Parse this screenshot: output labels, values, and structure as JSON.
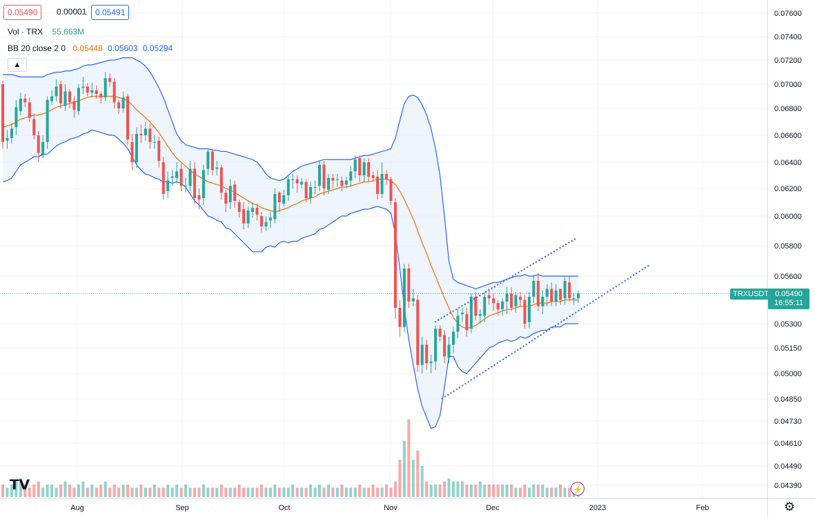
{
  "header": {
    "bid": "0.05490",
    "spread": "0.00001",
    "ask": "0.05491",
    "volume_label": "Vol · TRX",
    "volume_value": "55.663M",
    "bb_label": "BB 20 close 2 0",
    "bb_basis": "0.05448",
    "bb_upper": "0.05603",
    "bb_lower": "0.05294",
    "collapse_icon": "chevron-up-icon"
  },
  "last_price": {
    "symbol": "TRXUSDT",
    "price": "0.05490",
    "countdown": "16:55:11"
  },
  "colors": {
    "up": "#26a69a",
    "down": "#ef5350",
    "bb_band": "#2962ff",
    "bb_basis": "#ff6d00",
    "band_fill": "#e3eefa",
    "trendline": "#2962ff"
  },
  "icons": {
    "logo": "tradingview-logo-icon",
    "settings": "gear-icon",
    "alert": "lightning-icon"
  },
  "chart_data": {
    "type": "candlestick",
    "title": "TRXUSDT",
    "indicators": [
      "Volume",
      "Bollinger Bands (20, close, 2)"
    ],
    "yticks": [
      "0.07600",
      "0.07400",
      "0.07200",
      "0.07000",
      "0.06800",
      "0.06600",
      "0.06400",
      "0.06200",
      "0.06000",
      "0.05800",
      "0.05600",
      "0.05300",
      "0.05150",
      "0.05000",
      "0.04850",
      "0.04730",
      "0.04610",
      "0.04490",
      "0.04390"
    ],
    "xticks": [
      "Aug",
      "Sep",
      "Oct",
      "Nov",
      "Dec",
      "2023",
      "Feb"
    ],
    "ylim": [
      0.0434,
      0.0768
    ],
    "grid": true,
    "series_open": [
      0.07,
      0.0656,
      0.0658,
      0.0666,
      0.0678,
      0.0688,
      0.0685,
      0.0672,
      0.066,
      0.0645,
      0.0655,
      0.0686,
      0.069,
      0.07,
      0.0682,
      0.0694,
      0.0686,
      0.0678,
      0.0697,
      0.0698,
      0.0693,
      0.0695,
      0.0692,
      0.0689,
      0.0705,
      0.0702,
      0.0685,
      0.068,
      0.069,
      0.0655,
      0.064,
      0.0661,
      0.066,
      0.0665,
      0.0655,
      0.0656,
      0.064,
      0.0618,
      0.0628,
      0.0628,
      0.0635,
      0.0622,
      0.0622,
      0.0635,
      0.0615,
      0.0613,
      0.0635,
      0.0648,
      0.0635,
      0.0636,
      0.0617,
      0.061,
      0.0623,
      0.061,
      0.0605,
      0.0595,
      0.0603,
      0.0606,
      0.06,
      0.0593,
      0.0597,
      0.0598,
      0.0617,
      0.0609,
      0.0615,
      0.0627,
      0.0627,
      0.0623,
      0.0625,
      0.0613,
      0.0621,
      0.0622,
      0.0638,
      0.0619,
      0.0628,
      0.0627,
      0.0626,
      0.0623,
      0.0626,
      0.0633,
      0.0643,
      0.063,
      0.064,
      0.063,
      0.0629,
      0.0616,
      0.0631,
      0.0627,
      0.061,
      0.054,
      0.0528,
      0.0565,
      0.0544,
      0.0545,
      0.0505,
      0.0517,
      0.0506,
      0.0507,
      0.0527,
      0.0523,
      0.0509,
      0.0517,
      0.0525,
      0.0536,
      0.0536,
      0.0527,
      0.0547,
      0.0535,
      0.0535,
      0.0548,
      0.0546,
      0.0543,
      0.0539,
      0.0544,
      0.0549,
      0.0541,
      0.0547,
      0.0545,
      0.0531,
      0.0547,
      0.0557,
      0.0541,
      0.0547,
      0.0552,
      0.0544,
      0.0552,
      0.0546,
      0.0556,
      0.0546,
      0.0546
    ],
    "series_close": [
      0.0655,
      0.0658,
      0.0665,
      0.0681,
      0.0688,
      0.0685,
      0.0673,
      0.066,
      0.0647,
      0.0655,
      0.0687,
      0.069,
      0.0698,
      0.0684,
      0.0694,
      0.0685,
      0.0679,
      0.0697,
      0.0698,
      0.0693,
      0.0695,
      0.0692,
      0.0689,
      0.0705,
      0.0702,
      0.0685,
      0.068,
      0.0689,
      0.0657,
      0.064,
      0.0661,
      0.066,
      0.0665,
      0.0655,
      0.0655,
      0.0641,
      0.0616,
      0.0626,
      0.0629,
      0.0633,
      0.0622,
      0.0622,
      0.0635,
      0.0613,
      0.0612,
      0.0634,
      0.0648,
      0.0634,
      0.0636,
      0.0617,
      0.0609,
      0.0622,
      0.0611,
      0.0603,
      0.0595,
      0.0604,
      0.0606,
      0.0601,
      0.0593,
      0.0596,
      0.0599,
      0.0616,
      0.061,
      0.0615,
      0.0627,
      0.0627,
      0.0624,
      0.0625,
      0.0613,
      0.0621,
      0.0621,
      0.0638,
      0.062,
      0.0628,
      0.0626,
      0.0627,
      0.0622,
      0.0626,
      0.0633,
      0.0642,
      0.063,
      0.064,
      0.0629,
      0.0628,
      0.0616,
      0.0631,
      0.0627,
      0.0611,
      0.054,
      0.0528,
      0.0565,
      0.0544,
      0.0546,
      0.0505,
      0.0517,
      0.0506,
      0.0507,
      0.0527,
      0.0522,
      0.051,
      0.0517,
      0.0525,
      0.0535,
      0.0537,
      0.0526,
      0.0547,
      0.0535,
      0.0536,
      0.0547,
      0.0546,
      0.0543,
      0.0539,
      0.0544,
      0.0549,
      0.054,
      0.0548,
      0.0545,
      0.053,
      0.0547,
      0.0557,
      0.0541,
      0.0547,
      0.0552,
      0.0544,
      0.0551,
      0.0545,
      0.0557,
      0.0546,
      0.0546,
      0.0549
    ],
    "series_high": [
      0.0703,
      0.0664,
      0.0669,
      0.0687,
      0.0693,
      0.0692,
      0.0689,
      0.0676,
      0.0663,
      0.066,
      0.069,
      0.0695,
      0.0704,
      0.0703,
      0.07,
      0.0696,
      0.069,
      0.07,
      0.0706,
      0.0701,
      0.0701,
      0.0699,
      0.0694,
      0.071,
      0.0709,
      0.0705,
      0.0687,
      0.0694,
      0.0692,
      0.0661,
      0.0666,
      0.0668,
      0.067,
      0.0669,
      0.066,
      0.0659,
      0.0644,
      0.0633,
      0.0634,
      0.064,
      0.0639,
      0.0628,
      0.0641,
      0.064,
      0.062,
      0.0638,
      0.065,
      0.065,
      0.0641,
      0.0638,
      0.0619,
      0.0627,
      0.0626,
      0.0612,
      0.061,
      0.0607,
      0.061,
      0.0609,
      0.0603,
      0.06,
      0.0603,
      0.062,
      0.0618,
      0.0619,
      0.063,
      0.0631,
      0.063,
      0.0628,
      0.0627,
      0.0625,
      0.0626,
      0.0641,
      0.0641,
      0.0631,
      0.0631,
      0.0631,
      0.0629,
      0.0629,
      0.0637,
      0.0645,
      0.0645,
      0.0643,
      0.0643,
      0.0633,
      0.0634,
      0.064,
      0.0634,
      0.0629,
      0.0613,
      0.0545,
      0.0568,
      0.0568,
      0.0552,
      0.0548,
      0.0522,
      0.052,
      0.0511,
      0.0529,
      0.0529,
      0.0526,
      0.0522,
      0.0528,
      0.0539,
      0.054,
      0.054,
      0.0549,
      0.055,
      0.0539,
      0.055,
      0.0552,
      0.0549,
      0.0545,
      0.0546,
      0.0553,
      0.0553,
      0.055,
      0.055,
      0.0548,
      0.055,
      0.0561,
      0.0562,
      0.0551,
      0.0555,
      0.0556,
      0.0555,
      0.055,
      0.056,
      0.056,
      0.0549,
      0.0551
    ],
    "series_low": [
      0.065,
      0.065,
      0.0654,
      0.066,
      0.0675,
      0.0681,
      0.067,
      0.0657,
      0.064,
      0.0643,
      0.065,
      0.0683,
      0.0686,
      0.068,
      0.0678,
      0.068,
      0.0673,
      0.0675,
      0.0692,
      0.069,
      0.0689,
      0.0688,
      0.0684,
      0.0686,
      0.0698,
      0.068,
      0.0676,
      0.0677,
      0.0653,
      0.0634,
      0.0636,
      0.0654,
      0.0656,
      0.065,
      0.065,
      0.0636,
      0.0612,
      0.0613,
      0.0622,
      0.0624,
      0.0618,
      0.0617,
      0.0618,
      0.0609,
      0.0605,
      0.0608,
      0.063,
      0.063,
      0.063,
      0.0612,
      0.0603,
      0.0605,
      0.0606,
      0.0599,
      0.0591,
      0.0592,
      0.0599,
      0.0597,
      0.0589,
      0.059,
      0.0592,
      0.0595,
      0.0603,
      0.0607,
      0.0611,
      0.062,
      0.0617,
      0.062,
      0.061,
      0.0609,
      0.0616,
      0.0618,
      0.0615,
      0.0616,
      0.062,
      0.0621,
      0.0618,
      0.062,
      0.0621,
      0.0628,
      0.0625,
      0.0625,
      0.0625,
      0.0625,
      0.0612,
      0.0613,
      0.0623,
      0.0608,
      0.0533,
      0.0522,
      0.0525,
      0.054,
      0.0541,
      0.0501,
      0.05,
      0.0502,
      0.05,
      0.0502,
      0.0519,
      0.0506,
      0.0506,
      0.0512,
      0.0521,
      0.0531,
      0.0522,
      0.0524,
      0.0532,
      0.053,
      0.0531,
      0.0542,
      0.0538,
      0.0535,
      0.0535,
      0.0536,
      0.0538,
      0.0537,
      0.0541,
      0.0527,
      0.0527,
      0.0543,
      0.0538,
      0.0536,
      0.0541,
      0.0541,
      0.0541,
      0.0542,
      0.0542,
      0.0544,
      0.0542,
      0.0543
    ],
    "volume": [
      4,
      3,
      4,
      5,
      6,
      4,
      3,
      4,
      5,
      3,
      4,
      4,
      3,
      4,
      5,
      4,
      3,
      4,
      5,
      3,
      4,
      3,
      4,
      5,
      3,
      4,
      3,
      4,
      4,
      3,
      3,
      4,
      3,
      3,
      4,
      3,
      3,
      4,
      3,
      4,
      3,
      4,
      3,
      3,
      3,
      4,
      3,
      3,
      3,
      4,
      3,
      3,
      3,
      4,
      3,
      3,
      3,
      3,
      4,
      3,
      3,
      4,
      3,
      3,
      3,
      4,
      3,
      3,
      3,
      4,
      3,
      4,
      3,
      4,
      3,
      3,
      4,
      3,
      3,
      3,
      4,
      3,
      3,
      4,
      3,
      3,
      4,
      3,
      5,
      12,
      18,
      25,
      12,
      15,
      10,
      5,
      4,
      4,
      4,
      5,
      6,
      5,
      5,
      5,
      4,
      4,
      4,
      5,
      4,
      4,
      4,
      4,
      4,
      4,
      4,
      3,
      3,
      4,
      3,
      4,
      4,
      4,
      3,
      3,
      3,
      4,
      3,
      3,
      3,
      3
    ],
    "bb_upper": [
      0.0708,
      0.0708,
      0.0708,
      0.0707,
      0.0706,
      0.0706,
      0.0706,
      0.0706,
      0.0706,
      0.0706,
      0.0708,
      0.0709,
      0.071,
      0.071,
      0.0711,
      0.0711,
      0.0712,
      0.0713,
      0.0715,
      0.0716,
      0.0716,
      0.0717,
      0.0718,
      0.0719,
      0.072,
      0.072,
      0.0721,
      0.0722,
      0.0722,
      0.0722,
      0.072,
      0.0718,
      0.0715,
      0.071,
      0.0704,
      0.0697,
      0.0689,
      0.0679,
      0.067,
      0.0661,
      0.0656,
      0.0653,
      0.0652,
      0.0651,
      0.065,
      0.065,
      0.065,
      0.0649,
      0.0649,
      0.0648,
      0.0648,
      0.0647,
      0.0646,
      0.0645,
      0.0644,
      0.0643,
      0.0642,
      0.064,
      0.0636,
      0.0631,
      0.0628,
      0.0627,
      0.0626,
      0.0627,
      0.063,
      0.0633,
      0.0635,
      0.0637,
      0.0638,
      0.0639,
      0.064,
      0.0641,
      0.0642,
      0.0642,
      0.0642,
      0.0642,
      0.0642,
      0.0642,
      0.0642,
      0.0643,
      0.0644,
      0.0645,
      0.0645,
      0.0646,
      0.0647,
      0.0648,
      0.0649,
      0.065,
      0.0658,
      0.0671,
      0.0684,
      0.069,
      0.0691,
      0.0689,
      0.0683,
      0.0675,
      0.0665,
      0.065,
      0.063,
      0.06,
      0.057,
      0.0558,
      0.0556,
      0.0555,
      0.0554,
      0.0553,
      0.0552,
      0.0553,
      0.0554,
      0.0555,
      0.0556,
      0.0556,
      0.0557,
      0.0558,
      0.0559,
      0.056,
      0.056,
      0.0561,
      0.056,
      0.056,
      0.0561,
      0.056,
      0.056,
      0.056,
      0.056,
      0.056,
      0.056,
      0.056,
      0.056,
      0.056
    ],
    "bb_basis": [
      0.0666,
      0.0667,
      0.0668,
      0.067,
      0.0672,
      0.0673,
      0.0674,
      0.0675,
      0.0675,
      0.0676,
      0.0677,
      0.0679,
      0.0681,
      0.0682,
      0.0683,
      0.0684,
      0.0685,
      0.0686,
      0.0688,
      0.0689,
      0.069,
      0.069,
      0.069,
      0.069,
      0.069,
      0.069,
      0.0689,
      0.0688,
      0.0686,
      0.0683,
      0.0679,
      0.0676,
      0.0673,
      0.067,
      0.0666,
      0.0662,
      0.0657,
      0.0652,
      0.0647,
      0.0643,
      0.064,
      0.0637,
      0.0634,
      0.0631,
      0.0629,
      0.0627,
      0.0625,
      0.0624,
      0.0623,
      0.0622,
      0.062,
      0.0619,
      0.0617,
      0.0615,
      0.0613,
      0.0611,
      0.0609,
      0.0608,
      0.0606,
      0.0605,
      0.0604,
      0.0603,
      0.0604,
      0.0605,
      0.0606,
      0.0608,
      0.0609,
      0.0611,
      0.0612,
      0.0613,
      0.0614,
      0.0616,
      0.0617,
      0.0618,
      0.0619,
      0.062,
      0.0621,
      0.0621,
      0.0622,
      0.0623,
      0.0624,
      0.0625,
      0.0625,
      0.0626,
      0.0627,
      0.0627,
      0.0627,
      0.0626,
      0.0623,
      0.0618,
      0.0612,
      0.0605,
      0.0598,
      0.059,
      0.0582,
      0.0575,
      0.0567,
      0.056,
      0.0553,
      0.0546,
      0.054,
      0.0534,
      0.053,
      0.0528,
      0.0527,
      0.0528,
      0.0529,
      0.0531,
      0.0533,
      0.0535,
      0.0536,
      0.0537,
      0.0538,
      0.0539,
      0.0539,
      0.054,
      0.0541,
      0.0541,
      0.0541,
      0.0542,
      0.0543,
      0.0543,
      0.0543,
      0.0544,
      0.0544,
      0.0544,
      0.0545,
      0.0545,
      0.0545,
      0.0545
    ],
    "bb_lower": [
      0.0625,
      0.0626,
      0.0628,
      0.0633,
      0.0638,
      0.064,
      0.0642,
      0.0644,
      0.0644,
      0.0646,
      0.0646,
      0.0649,
      0.0652,
      0.0654,
      0.0655,
      0.0657,
      0.0658,
      0.0659,
      0.0661,
      0.0662,
      0.0664,
      0.0663,
      0.0662,
      0.0661,
      0.066,
      0.066,
      0.0657,
      0.0654,
      0.065,
      0.0644,
      0.0638,
      0.0634,
      0.0631,
      0.063,
      0.0628,
      0.0627,
      0.0625,
      0.0625,
      0.0624,
      0.0625,
      0.0624,
      0.0621,
      0.0616,
      0.0611,
      0.0608,
      0.0604,
      0.06,
      0.0599,
      0.0597,
      0.0596,
      0.0592,
      0.0591,
      0.0588,
      0.0585,
      0.0582,
      0.0579,
      0.0576,
      0.0576,
      0.0576,
      0.0579,
      0.058,
      0.0579,
      0.0582,
      0.0583,
      0.0582,
      0.0583,
      0.0583,
      0.0585,
      0.0586,
      0.0587,
      0.0588,
      0.0591,
      0.0592,
      0.0594,
      0.0596,
      0.0598,
      0.06,
      0.06,
      0.0602,
      0.0603,
      0.0604,
      0.0605,
      0.0605,
      0.0606,
      0.0607,
      0.0606,
      0.0605,
      0.0602,
      0.0588,
      0.0565,
      0.054,
      0.052,
      0.0505,
      0.0491,
      0.0481,
      0.0475,
      0.0469,
      0.047,
      0.0476,
      0.0492,
      0.051,
      0.051,
      0.0504,
      0.0501,
      0.05,
      0.0503,
      0.0506,
      0.0509,
      0.0512,
      0.0515,
      0.0516,
      0.0518,
      0.0519,
      0.052,
      0.0519,
      0.052,
      0.0522,
      0.0521,
      0.0522,
      0.0524,
      0.0525,
      0.0526,
      0.0526,
      0.0528,
      0.0528,
      0.0528,
      0.053,
      0.053,
      0.053,
      0.053
    ],
    "trendline_upper": {
      "from": [
        0.0531
      ],
      "to": [
        0.0585
      ]
    },
    "trendline_lower": {
      "from": [
        0.0485
      ],
      "to": [
        0.0567
      ]
    }
  }
}
